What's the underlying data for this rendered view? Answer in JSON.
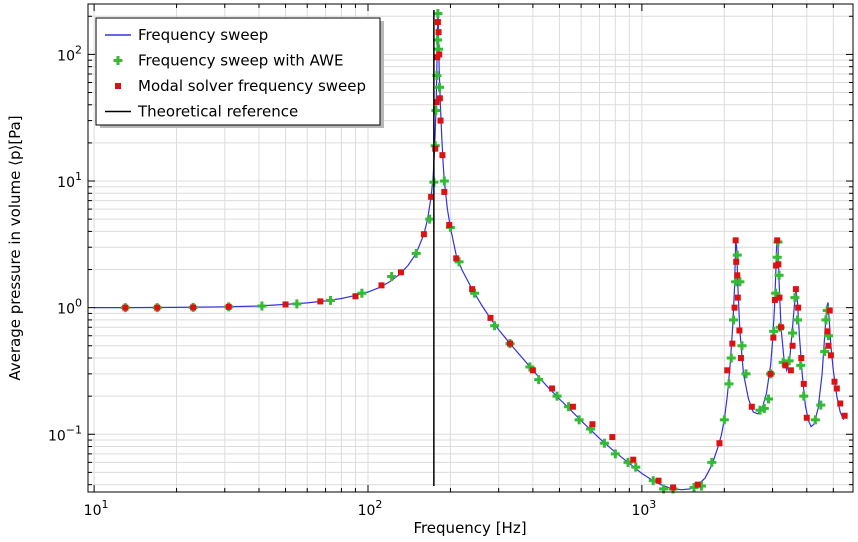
{
  "chart_data": {
    "type": "line",
    "xlabel": "Frequency [Hz]",
    "ylabel": "Average pressure in volume  ⟨p⟩[Pa]",
    "xscale": "log",
    "yscale": "log",
    "xlim": [
      9.5,
      5900
    ],
    "ylim": [
      0.035,
      250
    ],
    "grid": true,
    "legend_position": "top-left",
    "x_ticks": [
      {
        "value": 10,
        "base": "10",
        "exp": "1"
      },
      {
        "value": 100,
        "base": "10",
        "exp": "2"
      },
      {
        "value": 1000,
        "base": "10",
        "exp": "3"
      }
    ],
    "y_ticks": [
      {
        "value": 0.1,
        "base": "10",
        "exp": "−1"
      },
      {
        "value": 1,
        "base": "10",
        "exp": "0"
      },
      {
        "value": 10,
        "base": "10",
        "exp": "1"
      },
      {
        "value": 100,
        "base": "10",
        "exp": "2"
      }
    ],
    "series": [
      {
        "name": "Frequency sweep",
        "kind": "line",
        "color": "#3333dd",
        "points": [
          [
            10,
            1.0
          ],
          [
            13,
            1.0
          ],
          [
            20,
            1.005
          ],
          [
            30,
            1.015
          ],
          [
            40,
            1.03
          ],
          [
            50,
            1.06
          ],
          [
            60,
            1.09
          ],
          [
            70,
            1.13
          ],
          [
            80,
            1.18
          ],
          [
            90,
            1.25
          ],
          [
            100,
            1.33
          ],
          [
            110,
            1.44
          ],
          [
            120,
            1.6
          ],
          [
            130,
            1.82
          ],
          [
            140,
            2.15
          ],
          [
            150,
            2.68
          ],
          [
            160,
            3.8
          ],
          [
            165,
            5.0
          ],
          [
            170,
            7.5
          ],
          [
            173,
            11
          ],
          [
            175,
            18
          ],
          [
            177,
            35
          ],
          [
            178,
            60
          ],
          [
            179,
            110
          ],
          [
            179.5,
            180
          ],
          [
            180,
            220
          ],
          [
            180.5,
            190
          ],
          [
            181,
            130
          ],
          [
            182,
            75
          ],
          [
            184,
            38
          ],
          [
            186,
            22
          ],
          [
            188,
            14
          ],
          [
            190,
            10
          ],
          [
            195,
            6.0
          ],
          [
            200,
            4.3
          ],
          [
            210,
            2.6
          ],
          [
            220,
            2.0
          ],
          [
            240,
            1.4
          ],
          [
            260,
            1.05
          ],
          [
            280,
            0.82
          ],
          [
            300,
            0.67
          ],
          [
            330,
            0.52
          ],
          [
            370,
            0.39
          ],
          [
            400,
            0.32
          ],
          [
            450,
            0.24
          ],
          [
            500,
            0.19
          ],
          [
            550,
            0.155
          ],
          [
            600,
            0.128
          ],
          [
            700,
            0.093
          ],
          [
            800,
            0.072
          ],
          [
            900,
            0.059
          ],
          [
            1000,
            0.049
          ],
          [
            1100,
            0.043
          ],
          [
            1200,
            0.039
          ],
          [
            1300,
            0.037
          ],
          [
            1400,
            0.0365
          ],
          [
            1500,
            0.037
          ],
          [
            1600,
            0.04
          ],
          [
            1700,
            0.045
          ],
          [
            1800,
            0.057
          ],
          [
            1900,
            0.08
          ],
          [
            1950,
            0.098
          ],
          [
            2000,
            0.13
          ],
          [
            2050,
            0.2
          ],
          [
            2100,
            0.35
          ],
          [
            2150,
            0.75
          ],
          [
            2180,
            1.5
          ],
          [
            2200,
            3.4
          ],
          [
            2220,
            3.0
          ],
          [
            2240,
            1.5
          ],
          [
            2280,
            0.65
          ],
          [
            2350,
            0.3
          ],
          [
            2450,
            0.19
          ],
          [
            2550,
            0.15
          ],
          [
            2650,
            0.145
          ],
          [
            2750,
            0.16
          ],
          [
            2850,
            0.21
          ],
          [
            2950,
            0.35
          ],
          [
            3000,
            0.55
          ],
          [
            3050,
            1.0
          ],
          [
            3080,
            1.8
          ],
          [
            3110,
            3.4
          ],
          [
            3140,
            3.2
          ],
          [
            3170,
            1.6
          ],
          [
            3220,
            0.7
          ],
          [
            3300,
            0.4
          ],
          [
            3380,
            0.32
          ],
          [
            3460,
            0.38
          ],
          [
            3540,
            0.65
          ],
          [
            3600,
            1.0
          ],
          [
            3650,
            1.4
          ],
          [
            3700,
            1.1
          ],
          [
            3760,
            0.6
          ],
          [
            3850,
            0.3
          ],
          [
            3950,
            0.17
          ],
          [
            4050,
            0.13
          ],
          [
            4150,
            0.115
          ],
          [
            4250,
            0.12
          ],
          [
            4400,
            0.16
          ],
          [
            4550,
            0.3
          ],
          [
            4650,
            0.6
          ],
          [
            4730,
            1.0
          ],
          [
            4780,
            1.1
          ],
          [
            4830,
            0.8
          ],
          [
            4900,
            0.5
          ],
          [
            5000,
            0.32
          ],
          [
            5150,
            0.2
          ],
          [
            5300,
            0.15
          ],
          [
            5450,
            0.13
          ]
        ]
      },
      {
        "name": "Frequency sweep with AWE",
        "kind": "plus",
        "color": "#33bb33",
        "points": [
          [
            13,
            1.0
          ],
          [
            17,
            1.0
          ],
          [
            23,
            1.005
          ],
          [
            31,
            1.015
          ],
          [
            41,
            1.03
          ],
          [
            55,
            1.07
          ],
          [
            73,
            1.14
          ],
          [
            95,
            1.3
          ],
          [
            122,
            1.76
          ],
          [
            150,
            2.68
          ],
          [
            168,
            5.0
          ],
          [
            174,
            9.8
          ],
          [
            176,
            19
          ],
          [
            177,
            36
          ],
          [
            178.5,
            68
          ],
          [
            179.5,
            130
          ],
          [
            180,
            210
          ],
          [
            181,
            110
          ],
          [
            182.5,
            55
          ],
          [
            190,
            10
          ],
          [
            200,
            4.3
          ],
          [
            215,
            2.3
          ],
          [
            245,
            1.3
          ],
          [
            290,
            0.72
          ],
          [
            330,
            0.52
          ],
          [
            390,
            0.34
          ],
          [
            420,
            0.27
          ],
          [
            490,
            0.2
          ],
          [
            540,
            0.165
          ],
          [
            590,
            0.13
          ],
          [
            650,
            0.11
          ],
          [
            730,
            0.085
          ],
          [
            800,
            0.07
          ],
          [
            890,
            0.06
          ],
          [
            950,
            0.055
          ],
          [
            1100,
            0.043
          ],
          [
            1200,
            0.037
          ],
          [
            1300,
            0.037
          ],
          [
            1550,
            0.038
          ],
          [
            1650,
            0.039
          ],
          [
            1800,
            0.06
          ],
          [
            2000,
            0.13
          ],
          [
            2080,
            0.25
          ],
          [
            2120,
            0.4
          ],
          [
            2160,
            0.8
          ],
          [
            2200,
            1.6
          ],
          [
            2230,
            2.6
          ],
          [
            2280,
            1.6
          ],
          [
            2320,
            0.5
          ],
          [
            2400,
            0.3
          ],
          [
            2700,
            0.155
          ],
          [
            2800,
            0.16
          ],
          [
            2900,
            0.19
          ],
          [
            2950,
            0.3
          ],
          [
            3030,
            0.65
          ],
          [
            3080,
            1.3
          ],
          [
            3120,
            2.5
          ],
          [
            3140,
            3.3
          ],
          [
            3170,
            1.8
          ],
          [
            3200,
            0.7
          ],
          [
            3280,
            0.37
          ],
          [
            3450,
            0.38
          ],
          [
            3550,
            0.63
          ],
          [
            3620,
            1.2
          ],
          [
            3700,
            0.8
          ],
          [
            3800,
            0.35
          ],
          [
            3900,
            0.2
          ],
          [
            4300,
            0.13
          ],
          [
            4500,
            0.17
          ],
          [
            4650,
            0.45
          ],
          [
            4700,
            0.8
          ],
          [
            4750,
            0.95
          ],
          [
            4800,
            0.6
          ]
        ]
      },
      {
        "name": "Modal solver frequency sweep",
        "kind": "square",
        "color": "#dd1111",
        "points": [
          [
            13,
            1.0
          ],
          [
            17,
            1.0
          ],
          [
            23,
            1.003
          ],
          [
            31,
            1.015
          ],
          [
            50,
            1.06
          ],
          [
            67,
            1.12
          ],
          [
            90,
            1.23
          ],
          [
            112,
            1.5
          ],
          [
            132,
            1.9
          ],
          [
            160,
            3.8
          ],
          [
            170,
            7.5
          ],
          [
            176,
            18
          ],
          [
            178,
            42
          ],
          [
            179,
            95
          ],
          [
            180,
            180
          ],
          [
            181,
            150
          ],
          [
            182,
            100
          ],
          [
            183,
            45
          ],
          [
            184,
            30
          ],
          [
            187,
            16
          ],
          [
            190,
            8.2
          ],
          [
            198,
            4.5
          ],
          [
            210,
            2.45
          ],
          [
            240,
            1.4
          ],
          [
            280,
            0.83
          ],
          [
            330,
            0.52
          ],
          [
            400,
            0.32
          ],
          [
            470,
            0.23
          ],
          [
            560,
            0.165
          ],
          [
            660,
            0.12
          ],
          [
            780,
            0.095
          ],
          [
            930,
            0.063
          ],
          [
            1150,
            0.043
          ],
          [
            1300,
            0.038
          ],
          [
            1600,
            0.04
          ],
          [
            1920,
            0.085
          ],
          [
            2050,
            0.32
          ],
          [
            2140,
            0.52
          ],
          [
            2180,
            1.0
          ],
          [
            2200,
            3.4
          ],
          [
            2210,
            2.3
          ],
          [
            2230,
            1.8
          ],
          [
            2240,
            1.2
          ],
          [
            2270,
            0.66
          ],
          [
            2300,
            0.4
          ],
          [
            2520,
            0.165
          ],
          [
            2950,
            0.3
          ],
          [
            3020,
            0.58
          ],
          [
            3060,
            1.15
          ],
          [
            3090,
            2.15
          ],
          [
            3120,
            3.4
          ],
          [
            3150,
            2.2
          ],
          [
            3180,
            1.2
          ],
          [
            3220,
            0.7
          ],
          [
            3340,
            0.35
          ],
          [
            3500,
            0.32
          ],
          [
            3550,
            0.5
          ],
          [
            3650,
            1.4
          ],
          [
            3720,
            1.0
          ],
          [
            3820,
            0.4
          ],
          [
            3900,
            0.25
          ],
          [
            4000,
            0.135
          ],
          [
            4760,
            0.65
          ],
          [
            4800,
            0.5
          ],
          [
            4850,
            0.95
          ],
          [
            4900,
            0.42
          ],
          [
            5050,
            0.26
          ],
          [
            5150,
            0.23
          ],
          [
            5300,
            0.175
          ],
          [
            5500,
            0.14
          ]
        ]
      },
      {
        "name": "Theoretical reference",
        "kind": "vline",
        "color": "#000000",
        "x": 174
      }
    ]
  }
}
